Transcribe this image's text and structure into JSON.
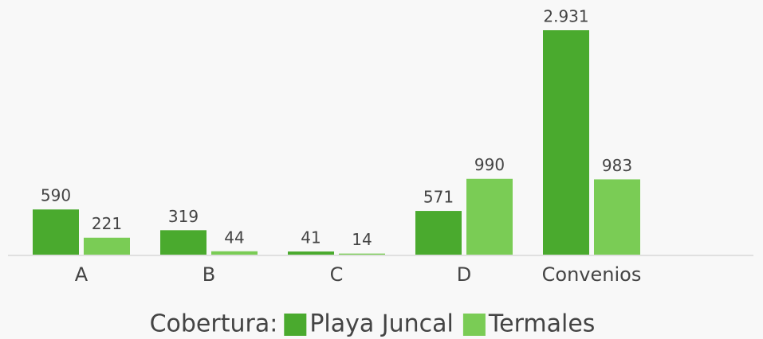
{
  "chart_data": {
    "type": "bar",
    "categories": [
      "A",
      "B",
      "C",
      "D",
      "Convenios"
    ],
    "series": [
      {
        "name": "Playa Juncal",
        "color": "#4aaa2e",
        "values": [
          590,
          319,
          41,
          571,
          2931
        ],
        "value_labels": [
          "590",
          "319",
          "41",
          "571",
          "2.931"
        ]
      },
      {
        "name": "Termales",
        "color": "#7acc55",
        "values": [
          221,
          44,
          14,
          990,
          983
        ]
      }
    ],
    "legend_title": "Cobertura:",
    "legend": "bottom"
  }
}
